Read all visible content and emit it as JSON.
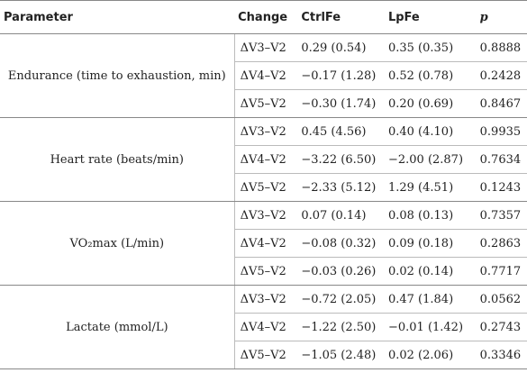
{
  "header": {
    "parameter": "Parameter",
    "change": "Change",
    "ctrlfe": "CtrlFe",
    "lpfe": "LpFe",
    "p": "p"
  },
  "groups": [
    {
      "parameter": "Endurance (time to exhaustion, min)",
      "rows": [
        {
          "change": "ΔV3–V2",
          "ctrlfe": "0.29 (0.54)",
          "lpfe": "0.35 (0.35)",
          "p": "0.8888"
        },
        {
          "change": "ΔV4–V2",
          "ctrlfe": "−0.17 (1.28)",
          "lpfe": "0.52 (0.78)",
          "p": "0.2428"
        },
        {
          "change": "ΔV5–V2",
          "ctrlfe": "−0.30 (1.74)",
          "lpfe": "0.20 (0.69)",
          "p": "0.8467"
        }
      ]
    },
    {
      "parameter": "Heart rate (beats/min)",
      "rows": [
        {
          "change": "ΔV3–V2",
          "ctrlfe": "0.45 (4.56)",
          "lpfe": "0.40 (4.10)",
          "p": "0.9935"
        },
        {
          "change": "ΔV4–V2",
          "ctrlfe": "−3.22 (6.50)",
          "lpfe": "−2.00 (2.87)",
          "p": "0.7634"
        },
        {
          "change": "ΔV5–V2",
          "ctrlfe": "−2.33 (5.12)",
          "lpfe": "1.29 (4.51)",
          "p": "0.1243"
        }
      ]
    },
    {
      "parameter": "VO₂max (L/min)",
      "rows": [
        {
          "change": "ΔV3–V2",
          "ctrlfe": "0.07 (0.14)",
          "lpfe": "0.08 (0.13)",
          "p": "0.7357"
        },
        {
          "change": "ΔV4–V2",
          "ctrlfe": "−0.08 (0.32)",
          "lpfe": "0.09 (0.18)",
          "p": "0.2863"
        },
        {
          "change": "ΔV5–V2",
          "ctrlfe": "−0.03 (0.26)",
          "lpfe": "0.02 (0.14)",
          "p": "0.7717"
        }
      ]
    },
    {
      "parameter": "Lactate (mmol/L)",
      "rows": [
        {
          "change": "ΔV3–V2",
          "ctrlfe": "−0.72 (2.05)",
          "lpfe": "0.47 (1.84)",
          "p": "0.0562"
        },
        {
          "change": "ΔV4–V2",
          "ctrlfe": "−1.22 (2.50)",
          "lpfe": "−0.01 (1.42)",
          "p": "0.2743"
        },
        {
          "change": "ΔV5–V2",
          "ctrlfe": "−1.05 (2.48)",
          "lpfe": "0.02 (2.06)",
          "p": "0.3346"
        }
      ]
    }
  ]
}
